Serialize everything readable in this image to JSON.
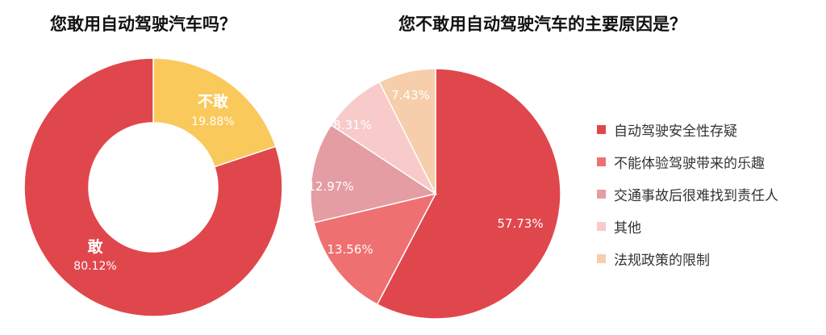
{
  "colors": {
    "accent_red": "#e0474c",
    "accent_yellow": "#f9c95c",
    "white": "#ffffff"
  },
  "chart_data": [
    {
      "type": "donut",
      "title": "您敢用自动驾驶汽车吗？",
      "slices": [
        {
          "name": "不敢",
          "value": 19.88,
          "label": "19.88%",
          "color": "#f9c95c"
        },
        {
          "name": "敢",
          "value": 80.12,
          "label": "80.12%",
          "color": "#e0474c"
        }
      ]
    },
    {
      "type": "pie",
      "title": "您不敢用自动驾驶汽车的主要原因是？",
      "legend_position": "right",
      "slices": [
        {
          "name": "自动驾驶安全性存疑",
          "value": 57.73,
          "label": "57.73%",
          "color": "#e0474c"
        },
        {
          "name": "不能体验驾驶带来的乐趣",
          "value": 13.56,
          "label": "13.56%",
          "color": "#ef7071"
        },
        {
          "name": "交通事故后很难找到责任人",
          "value": 12.97,
          "label": "12.97%",
          "color": "#e49da2"
        },
        {
          "name": "其他",
          "value": 8.31,
          "label": "8.31%",
          "color": "#f8caca"
        },
        {
          "name": "法规政策的限制",
          "value": 7.43,
          "label": "7.43%",
          "color": "#f6ceab"
        }
      ]
    }
  ]
}
